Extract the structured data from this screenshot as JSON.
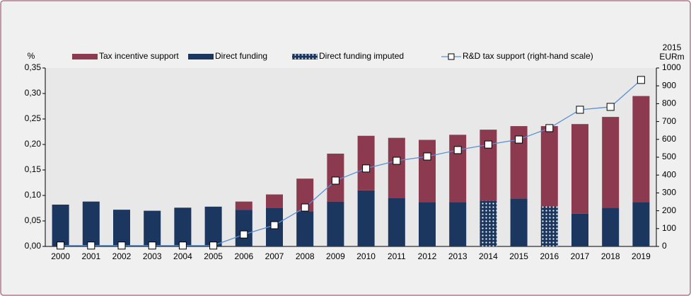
{
  "chart_data": {
    "type": "bar",
    "y_label": "%",
    "y2_label": [
      "2015",
      "EURm"
    ],
    "categories": [
      "2000",
      "2001",
      "2002",
      "2003",
      "2004",
      "2005",
      "2006",
      "2007",
      "2008",
      "2009",
      "2010",
      "2011",
      "2012",
      "2013",
      "2014",
      "2015",
      "2016",
      "2017",
      "2018",
      "2019"
    ],
    "series": [
      {
        "name": "Tax incentive support",
        "color": "#8c3a50",
        "values": [
          null,
          null,
          null,
          null,
          null,
          null,
          0.016,
          0.027,
          0.064,
          0.094,
          0.107,
          0.118,
          0.122,
          0.132,
          0.139,
          0.142,
          0.157,
          0.176,
          0.178,
          0.208
        ]
      },
      {
        "name": "Direct funding",
        "color": "#1b365f",
        "values": [
          0.082,
          0.088,
          0.072,
          0.07,
          0.076,
          0.078,
          0.072,
          0.075,
          0.069,
          0.088,
          0.11,
          0.095,
          0.087,
          0.087,
          null,
          0.094,
          null,
          0.064,
          0.076,
          0.087
        ]
      },
      {
        "name": "Direct funding imputed",
        "color": "#1b365f",
        "pattern": "dotted",
        "values": [
          null,
          null,
          null,
          null,
          null,
          null,
          null,
          null,
          null,
          null,
          null,
          null,
          null,
          null,
          0.09,
          null,
          0.079,
          null,
          null,
          null
        ]
      },
      {
        "name": "R&D tax support (right-hand scale)",
        "color": "#5b8fd1",
        "type": "line",
        "axis": "y2",
        "values": [
          5,
          5,
          5,
          5,
          5,
          5,
          67,
          119,
          218,
          369,
          437,
          480,
          504,
          540,
          571,
          599,
          663,
          766,
          782,
          933
        ]
      }
    ],
    "stack_order": [
      1,
      2,
      0
    ],
    "ylim": [
      0,
      0.35
    ],
    "yticks": [
      {
        "value": 0,
        "label": "0,00"
      },
      {
        "value": 0.05,
        "label": "0,05"
      },
      {
        "value": 0.1,
        "label": "0,10"
      },
      {
        "value": 0.15,
        "label": "0,15"
      },
      {
        "value": 0.2,
        "label": "0,20"
      },
      {
        "value": 0.25,
        "label": "0,25"
      },
      {
        "value": 0.3,
        "label": "0,30"
      },
      {
        "value": 0.35,
        "label": "0,35"
      }
    ],
    "y2lim": [
      0,
      1000
    ],
    "y2ticks": [
      0,
      100,
      200,
      300,
      400,
      500,
      600,
      700,
      800,
      900,
      1000
    ],
    "grid": false,
    "legend": "top"
  }
}
